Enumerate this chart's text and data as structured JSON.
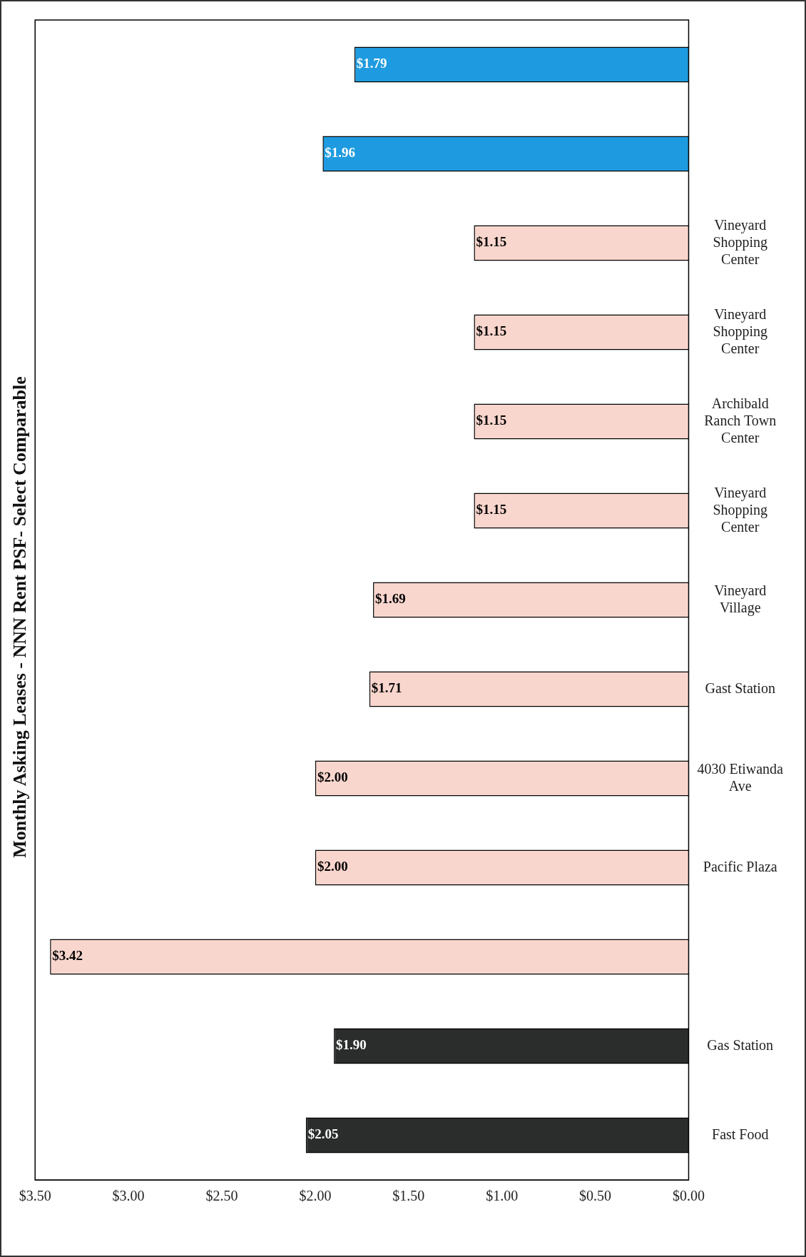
{
  "chart_data": {
    "type": "bar",
    "orientation": "horizontal",
    "title": "Monthly Asking Leases - NNN Rent PSF- Select Comparable",
    "categories": [
      null,
      null,
      "Vineyard Shopping Center",
      "Vineyard Shopping Center",
      "Archibald Ranch Town Center",
      "Vineyard Shopping Center",
      "Vineyard Village",
      "Gast Station",
      "4030 Etiwanda Ave",
      "Pacific Plaza",
      null,
      "Gas Station",
      "Fast Food"
    ],
    "values": [
      1.79,
      1.96,
      1.15,
      1.15,
      1.15,
      1.15,
      1.69,
      1.71,
      2.0,
      2.0,
      3.42,
      1.9,
      2.05
    ],
    "value_labels": [
      "$1.79",
      "$1.96",
      "$1.15",
      "$1.15",
      "$1.15",
      "$1.15",
      "$1.69",
      "$1.71",
      "$2.00",
      "$2.00",
      "$3.42",
      "$1.90",
      "$2.05"
    ],
    "colors": [
      "#1e9be0",
      "#1e9be0",
      "#f9d6cd",
      "#f9d6cd",
      "#f9d6cd",
      "#f9d6cd",
      "#f9d6cd",
      "#f9d6cd",
      "#f9d6cd",
      "#f9d6cd",
      "#f9d6cd",
      "#2a2d2b",
      "#2a2d2b"
    ],
    "xlim": [
      3.5,
      0
    ],
    "xticks": [
      {
        "value": 3.5,
        "label": "$3.50"
      },
      {
        "value": 3,
        "label": "$3.00"
      },
      {
        "value": 2.5,
        "label": "$2.50"
      },
      {
        "value": 2,
        "label": "$2.00"
      },
      {
        "value": 1.5,
        "label": "$1.50"
      },
      {
        "value": 1,
        "label": "$1.00"
      },
      {
        "value": 0.5,
        "label": "$0.50"
      },
      {
        "value": 0,
        "label": "$0.00"
      }
    ],
    "grid": false,
    "legend": false
  }
}
